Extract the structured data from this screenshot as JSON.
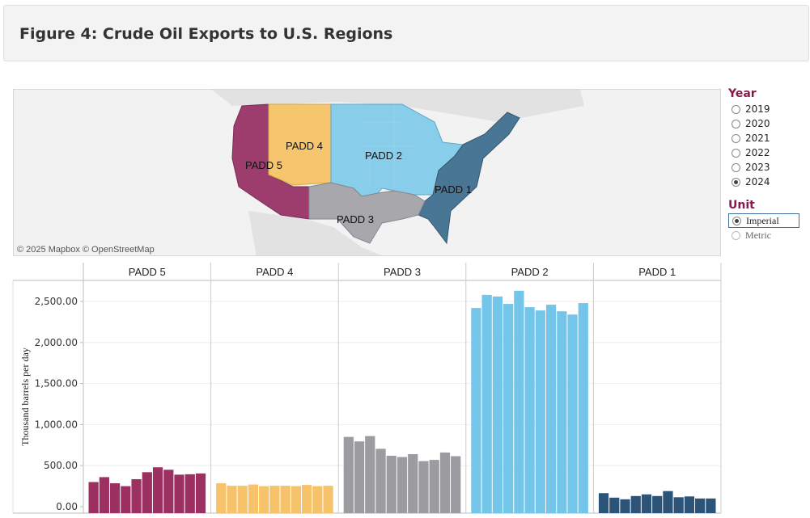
{
  "header": {
    "title": "Figure 4: Crude Oil Exports to U.S. Regions"
  },
  "map": {
    "attribution": "© 2025 Mapbox  © OpenStreetMap",
    "regions": [
      {
        "name": "PADD 5",
        "color": "#9c3d6e"
      },
      {
        "name": "PADD 4",
        "color": "#f5c66e"
      },
      {
        "name": "PADD 2",
        "color": "#88cdea"
      },
      {
        "name": "PADD 1",
        "color": "#4a7696"
      },
      {
        "name": "PADD 3",
        "color": "#a7a7ac"
      }
    ]
  },
  "filters": {
    "year_title": "Year",
    "years": [
      "2019",
      "2020",
      "2021",
      "2022",
      "2023",
      "2024"
    ],
    "selected_year": "2024",
    "unit_title": "Unit",
    "units": [
      "Imperial",
      "Metric"
    ],
    "selected_unit": "Imperial"
  },
  "chart_data": {
    "type": "bar",
    "ylabel": "Thousand barrels per day",
    "ylim": [
      0,
      2700
    ],
    "yticks": [
      0,
      500,
      1000,
      1500,
      2000,
      2500
    ],
    "ytick_labels": [
      "0.00",
      "500.00",
      "1,000.00",
      "1,500.00",
      "2,000.00",
      "2,500.00"
    ],
    "panels": [
      {
        "name": "PADD 5",
        "color": "#9c3060",
        "values": [
          300,
          360,
          285,
          250,
          335,
          420,
          480,
          450,
          390,
          395,
          405
        ]
      },
      {
        "name": "PADD 4",
        "color": "#f7c36a",
        "values": [
          285,
          255,
          255,
          270,
          250,
          255,
          255,
          250,
          265,
          250,
          255
        ]
      },
      {
        "name": "PADD 3",
        "color": "#9b9ba0",
        "values": [
          850,
          795,
          860,
          705,
          620,
          605,
          640,
          555,
          570,
          660,
          615
        ]
      },
      {
        "name": "PADD 2",
        "color": "#74c5ea",
        "values": [
          2420,
          2580,
          2560,
          2470,
          2630,
          2430,
          2390,
          2460,
          2380,
          2340,
          2480
        ]
      },
      {
        "name": "PADD 1",
        "color": "#2b5478",
        "values": [
          165,
          110,
          90,
          130,
          150,
          130,
          190,
          115,
          125,
          100,
          100
        ]
      }
    ]
  }
}
